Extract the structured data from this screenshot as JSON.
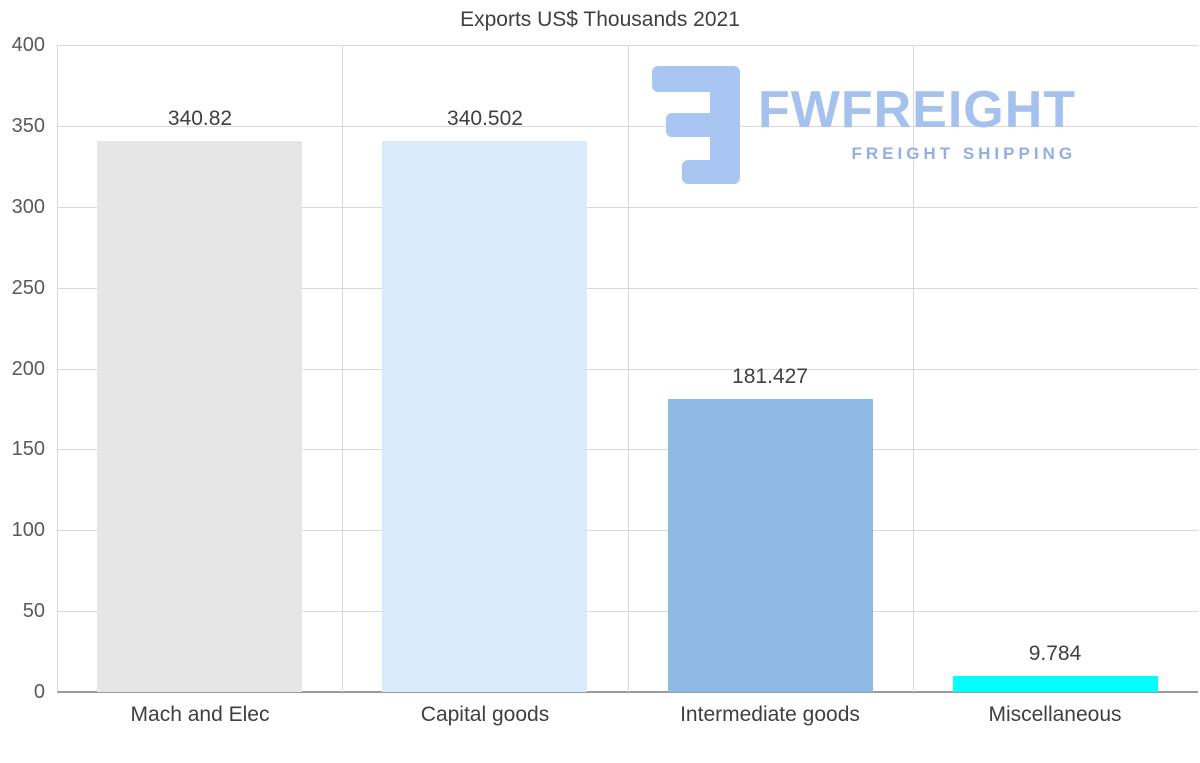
{
  "chart_data": {
    "type": "bar",
    "title": "Exports US$ Thousands 2021",
    "categories": [
      "Mach and Elec",
      "Capital goods",
      "Intermediate goods",
      "Miscellaneous"
    ],
    "values": [
      340.82,
      340.502,
      181.427,
      9.784
    ],
    "value_labels": [
      "340.82",
      "340.502",
      "181.427",
      "9.784"
    ],
    "bar_colors": [
      "#e6e6e6",
      "#d9eafb",
      "#8fbae5",
      "#00ffff"
    ],
    "xlabel": "",
    "ylabel": "",
    "ylim": [
      0,
      400
    ],
    "yticks": [
      0,
      50,
      100,
      150,
      200,
      250,
      300,
      350,
      400
    ],
    "grid": true,
    "legend": "none"
  },
  "watermark": {
    "brand": "FWFREIGHT",
    "tagline": "FREIGHT SHIPPING",
    "icon": "fwfreight-logo-icon",
    "icon_color": "#a9c6f3"
  },
  "colors": {
    "gridline": "#d9d9d9",
    "axis": "#9a9a9a",
    "tick_text": "#595959",
    "label_text": "#3f3f3f"
  }
}
